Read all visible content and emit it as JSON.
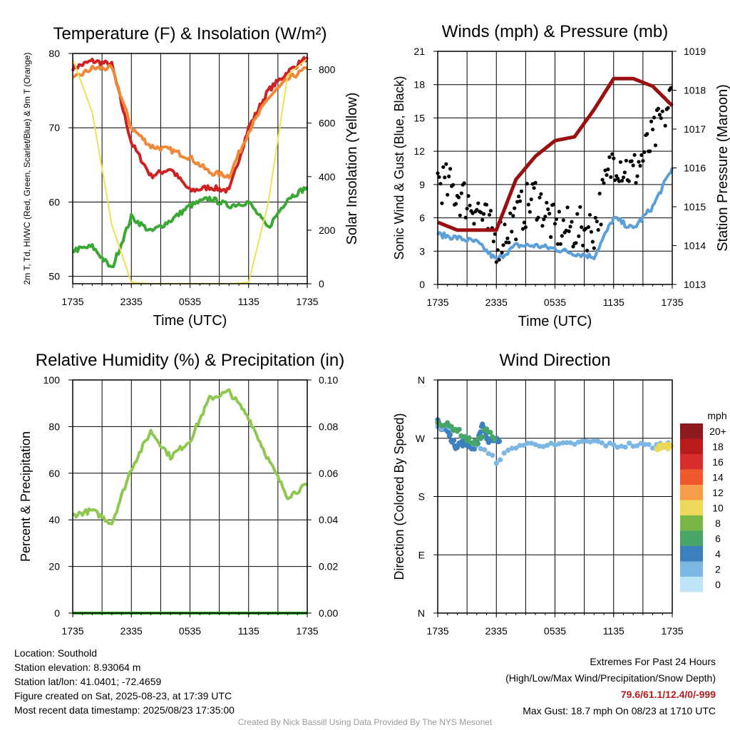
{
  "chart_data": [
    {
      "type": "line",
      "title": "Temperature (F) & Insolation (W/m²)",
      "xlabel": "Time (UTC)",
      "ylabel": "2m T, Td, HI/WC (Red, Green, Scarlet/Blue) & 9m T (Orange)",
      "ylabel_right": "Solar Insolation (Yellow)",
      "x_ticks": [
        "1735",
        "2335",
        "0535",
        "1135",
        "1735"
      ],
      "x": [
        "1735",
        "1935",
        "2135",
        "2335",
        "0135",
        "0335",
        "0535",
        "0735",
        "0935",
        "1135",
        "1335",
        "1535",
        "1735"
      ],
      "ylim": [
        49,
        80
      ],
      "y_ticks": [
        50,
        60,
        70,
        80
      ],
      "y2lim": [
        0,
        860
      ],
      "y2_ticks": [
        0,
        200,
        400,
        600,
        800
      ],
      "grid": true,
      "series": [
        {
          "color": "#cc2222",
          "axis": "left",
          "values": [
            78,
            79,
            78.5,
            68,
            63.5,
            64.5,
            61.5,
            62,
            61.5,
            70,
            75,
            77.5,
            79.5
          ]
        },
        {
          "color": "#f08838",
          "axis": "left",
          "values": [
            76.5,
            78,
            78,
            70,
            67.5,
            67,
            66,
            64,
            63.5,
            69.5,
            74,
            76.5,
            78
          ]
        },
        {
          "color": "#3aa832",
          "axis": "left",
          "values": [
            53.5,
            54,
            51,
            58,
            56,
            57.5,
            59.5,
            60.5,
            59.5,
            60,
            56.5,
            60.5,
            62
          ]
        },
        {
          "color": "#f0e050",
          "axis": "right",
          "values": [
            840,
            640,
            220,
            5,
            0,
            0,
            0,
            0,
            0,
            5,
            300,
            780,
            840
          ]
        }
      ]
    },
    {
      "type": "line",
      "title": "Winds (mph) & Pressure (mb)",
      "xlabel": "Time (UTC)",
      "ylabel": "Sonic Wind & Gust (Blue, Black)",
      "ylabel_right": "Station Pressure (Maroon)",
      "x_ticks": [
        "1735",
        "2335",
        "0535",
        "1135",
        "1735"
      ],
      "x": [
        "1735",
        "1935",
        "2135",
        "2335",
        "0135",
        "0335",
        "0535",
        "0735",
        "0935",
        "1135",
        "1335",
        "1535",
        "1735"
      ],
      "ylim": [
        0,
        21
      ],
      "y_ticks": [
        0,
        3,
        6,
        9,
        12,
        15,
        18,
        21
      ],
      "y2lim": [
        1013,
        1019
      ],
      "y2_ticks": [
        1013,
        1014,
        1015,
        1016,
        1017,
        1018,
        1019
      ],
      "grid": true,
      "series": [
        {
          "color": "#5a9fd8",
          "axis": "left",
          "values": [
            4.5,
            4.2,
            3.8,
            2.2,
            3.5,
            3.5,
            3.2,
            2.8,
            2.5,
            6,
            5,
            7,
            10.5
          ]
        },
        {
          "color": "#000000",
          "axis": "left",
          "values": [
            9.5,
            8.2,
            7,
            3.8,
            6,
            8,
            5,
            5,
            5,
            11.5,
            10,
            13,
            17
          ]
        },
        {
          "color": "#9a1010",
          "axis": "right",
          "values": [
            1014.6,
            1014.4,
            1014.4,
            1014.4,
            1015.7,
            1016.3,
            1016.7,
            1016.8,
            1017.5,
            1018.3,
            1018.3,
            1018.1,
            1017.6
          ]
        }
      ]
    },
    {
      "type": "line",
      "title": "Relative Humidity (%) & Precipitation (in)",
      "xlabel": "",
      "ylabel": "Percent & Precipitation",
      "x_ticks": [
        "1735",
        "2335",
        "0535",
        "1135",
        "1735"
      ],
      "x": [
        "1735",
        "1935",
        "2135",
        "2335",
        "0135",
        "0335",
        "0535",
        "0735",
        "0935",
        "1135",
        "1335",
        "1535",
        "1735"
      ],
      "ylim": [
        0,
        100
      ],
      "y_ticks": [
        0,
        20,
        40,
        60,
        80,
        100
      ],
      "y2lim": [
        0,
        0.1
      ],
      "y2_ticks": [
        "0.00",
        "0.02",
        "0.04",
        "0.06",
        "0.08",
        "0.10"
      ],
      "grid": true,
      "series": [
        {
          "color": "#8ec850",
          "axis": "left",
          "values": [
            42,
            44,
            38.5,
            62,
            78,
            67,
            74,
            92,
            95,
            84,
            66,
            50,
            55
          ]
        },
        {
          "color": "#3aa832",
          "axis": "right",
          "values": [
            0,
            0,
            0,
            0,
            0,
            0,
            0,
            0,
            0,
            0,
            0,
            0,
            0
          ]
        }
      ]
    },
    {
      "type": "scatter",
      "title": "Wind Direction",
      "xlabel": "",
      "ylabel": "Direction (Colored By Speed)",
      "x_ticks": [
        "1735",
        "2335",
        "0535",
        "1135",
        "1735"
      ],
      "y_ticks": [
        "N",
        "E",
        "S",
        "W",
        "N"
      ],
      "grid": true,
      "legend": {
        "title": "mph",
        "position": "right",
        "labels": [
          "20+",
          "18",
          "16",
          "14",
          "12",
          "10",
          "8",
          "6",
          "4",
          "2",
          "0"
        ],
        "colors": [
          "#8e1a1e",
          "#b81b1b",
          "#d92c2c",
          "#ef5a2c",
          "#f79d4a",
          "#ecd95c",
          "#7ab648",
          "#47a567",
          "#3b81be",
          "#7cb7e3",
          "#bfe3f7"
        ]
      },
      "series": [
        {
          "color": "#3b81be",
          "values": [
            295,
            285,
            283,
            270,
            258,
            262,
            262,
            260,
            255,
            265,
            293,
            265,
            270,
            267,
            268
          ]
        },
        {
          "color": "#7cb7e3",
          "values": [
            290,
            280,
            260,
            235,
            258,
            262,
            258,
            262,
            265,
            258,
            260,
            258,
            262
          ]
        },
        {
          "color": "#47a567",
          "values": [
            295,
            290,
            283,
            268,
            262,
            285,
            262
          ]
        },
        {
          "color": "#ecd95c",
          "values": [
            252,
            260,
            258,
            255
          ]
        }
      ]
    }
  ],
  "location": {
    "location": "Location: Southold",
    "elevation": "Station elevation: 8.93064 m",
    "latlon": "Station lat/lon: 41.0401; -72.4659",
    "created": "Figure created on Sat, 2025-08-23, at 17:39 UTC",
    "recent": "Most recent data timestamp: 2025/08/23 17:35:00"
  },
  "extremes": {
    "title": "Extremes For Past 24 Hours",
    "subtitle": "(High/Low/Max Wind/Precipitation/Snow Depth)",
    "values": "79.6/61.1/12.4/0/-999",
    "gust": "Max Gust: 18.7 mph On 08/23 at 1710 UTC"
  },
  "credit": "Created By Nick Bassill Using Data Provided By The NYS Mesonet"
}
